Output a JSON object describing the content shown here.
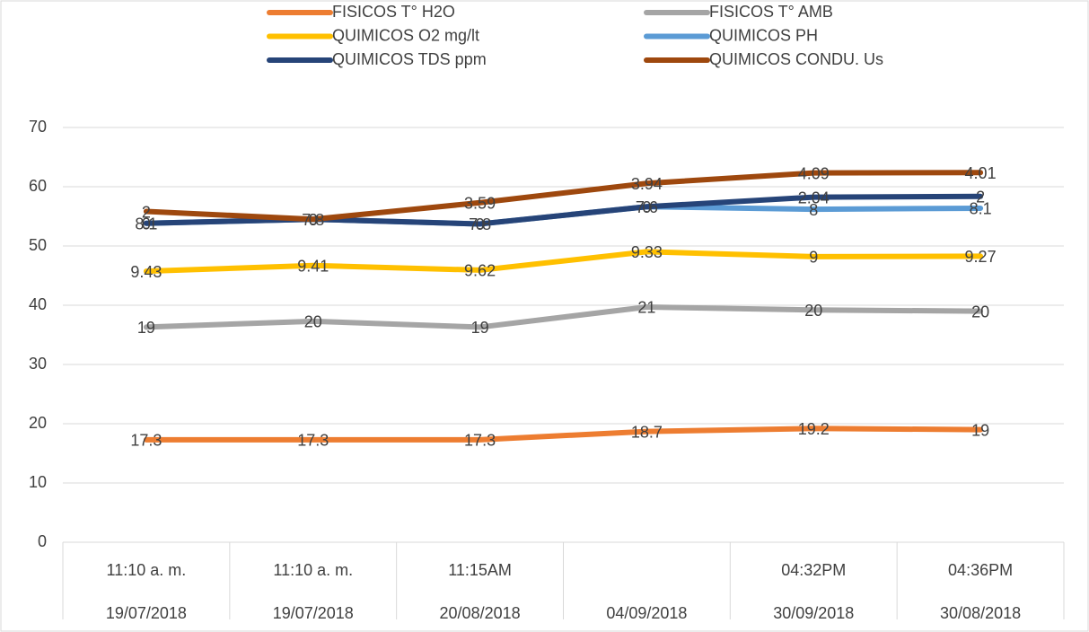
{
  "chart_data": {
    "type": "line",
    "stacked": true,
    "categories": [
      "11:10 a. m.",
      "11:10 a. m.",
      "11:15AM",
      null,
      "04:32PM",
      "04:36PM"
    ],
    "category_dates": [
      "19/07/2018",
      "19/07/2018",
      "20/08/2018",
      "04/09/2018",
      "30/09/2018",
      "30/08/2018"
    ],
    "series": [
      {
        "name": "FISICOS T° H2O",
        "color": "#ed7d31",
        "values": [
          17.3,
          17.3,
          17.3,
          18.7,
          19.2,
          19
        ]
      },
      {
        "name": "FISICOS T° AMB",
        "color": "#a5a5a5",
        "values": [
          19,
          20,
          19,
          21,
          20,
          20
        ]
      },
      {
        "name": "QUIMICOS O2 mg/lt",
        "color": "#ffc000",
        "values": [
          9.43,
          9.41,
          9.62,
          9.33,
          9,
          9.27
        ]
      },
      {
        "name": "QUIMICOS PH",
        "color": "#5b9bd5",
        "values": [
          8.1,
          7.8,
          7.8,
          7.6,
          8,
          8.1
        ]
      },
      {
        "name": "QUIMICOS TDS ppm",
        "color": "#264478",
        "values": [
          0,
          0,
          0,
          0,
          2.04,
          2
        ]
      },
      {
        "name": "QUIMICOS CONDU. Us",
        "color": "#9e480e",
        "values": [
          2,
          0,
          3.59,
          3.94,
          4.09,
          4.01
        ]
      }
    ],
    "ylim": [
      0,
      70
    ],
    "yticks": [
      0,
      10,
      20,
      30,
      40,
      50,
      60,
      70
    ],
    "grid": true,
    "legend": "top"
  }
}
